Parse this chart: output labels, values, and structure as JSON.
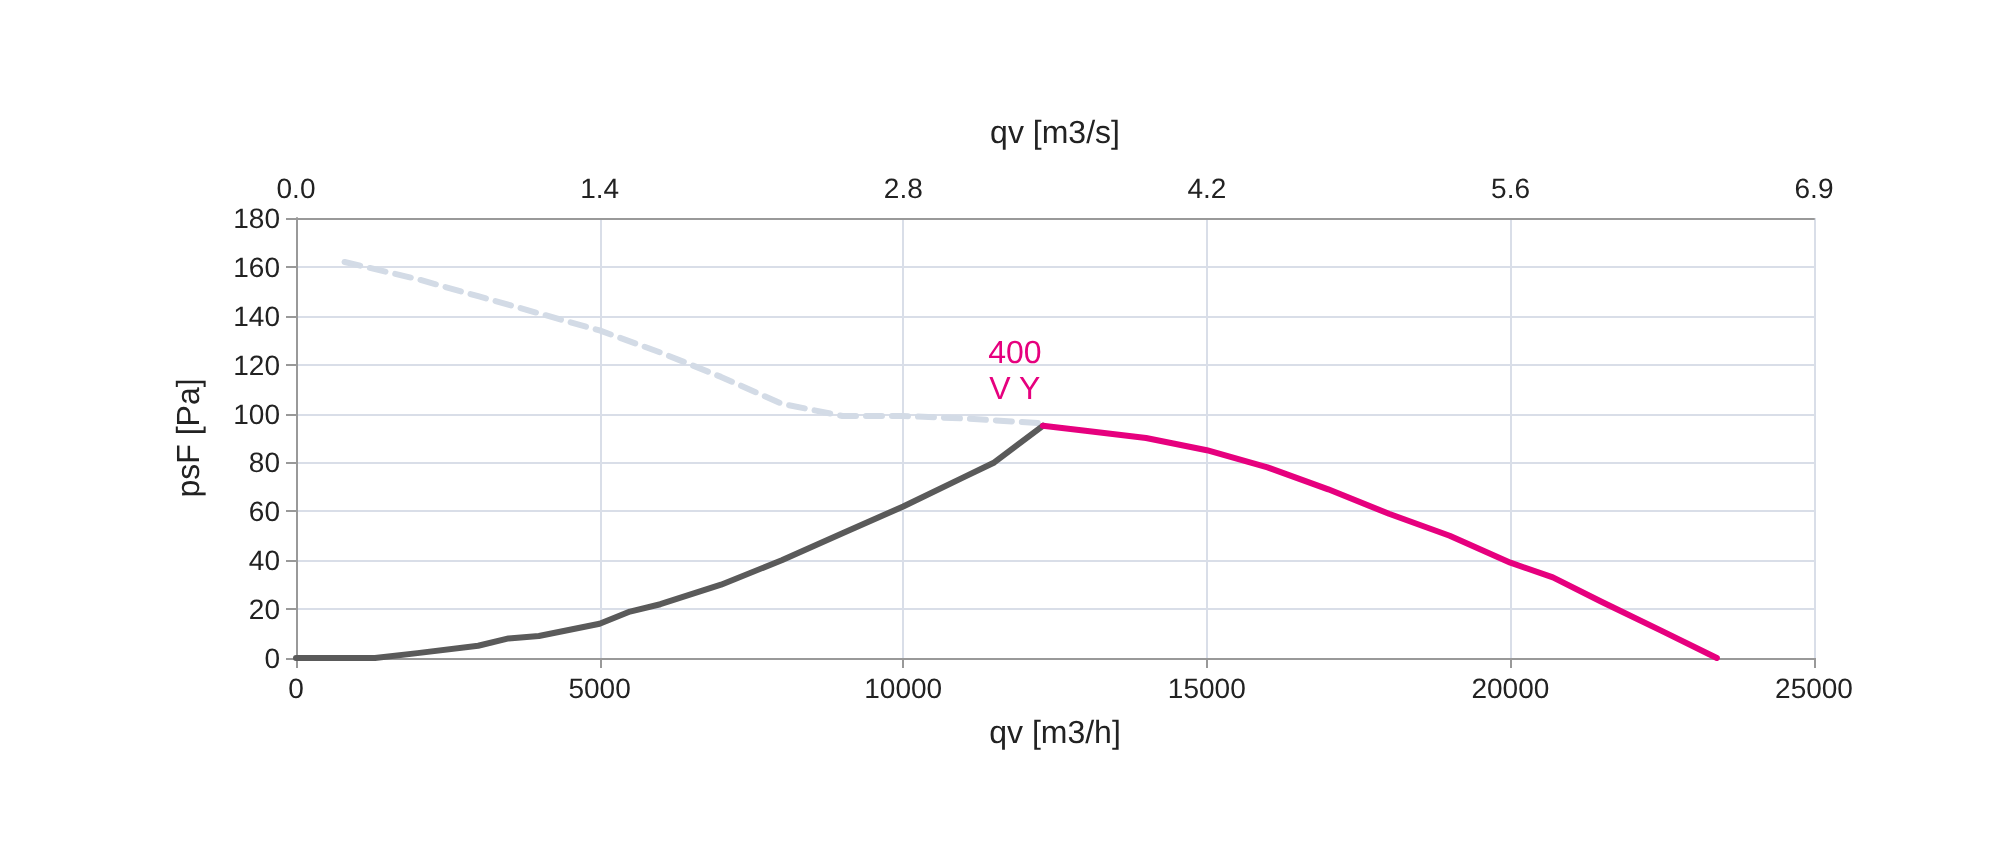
{
  "chart_data": {
    "type": "line",
    "xlabel": "qv [m3/h]",
    "x2label": "qv [m3/s]",
    "ylabel": "psF [Pa]",
    "xlim": [
      0,
      25000
    ],
    "xticks": [
      0,
      5000,
      10000,
      15000,
      20000,
      25000
    ],
    "x2lim": [
      0,
      6.944
    ],
    "x2ticks": [
      {
        "value": 0,
        "label": "0.0"
      },
      {
        "value": 1.389,
        "label": "1.4"
      },
      {
        "value": 2.778,
        "label": "2.8"
      },
      {
        "value": 4.167,
        "label": "4.2"
      },
      {
        "value": 5.556,
        "label": "5.6"
      },
      {
        "value": 6.944,
        "label": "6.9"
      }
    ],
    "ylim": [
      0,
      180
    ],
    "yticks": [
      0,
      20,
      40,
      60,
      80,
      100,
      120,
      140,
      160,
      180
    ],
    "grid": true,
    "marker": "none",
    "series": [
      {
        "color": "#d3dbe6",
        "line_style": "dashed",
        "x": [
          800,
          2000,
          3000,
          4000,
          5000,
          6000,
          7000,
          8000,
          9000,
          10000,
          11000,
          12300
        ],
        "values": [
          162,
          155,
          148,
          141,
          134,
          125,
          115,
          104,
          99,
          99,
          98,
          96
        ]
      },
      {
        "color": "#5a5a5a",
        "line_style": "solid",
        "x": [
          0,
          1300,
          2000,
          3000,
          3500,
          4000,
          5000,
          5500,
          6000,
          7000,
          8000,
          9000,
          10000,
          11000,
          11500,
          12300
        ],
        "values": [
          0,
          0,
          2,
          5,
          8,
          9,
          14,
          19,
          22,
          30,
          40,
          51,
          62,
          74,
          80,
          95
        ]
      },
      {
        "color": "#e6007e",
        "line_style": "solid",
        "x": [
          12300,
          13000,
          14000,
          15000,
          16000,
          17000,
          18000,
          19000,
          20000,
          20700,
          21500,
          22500,
          23400
        ],
        "values": [
          95,
          93,
          90,
          85,
          78,
          69,
          59,
          50,
          39,
          33,
          23,
          11,
          0
        ]
      }
    ],
    "annotations": [
      "400",
      "V Y"
    ]
  }
}
